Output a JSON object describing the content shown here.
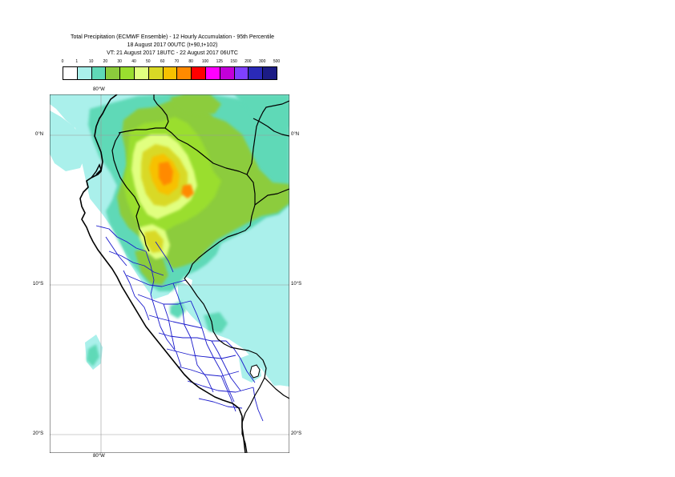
{
  "title": {
    "line1": "Total Precipitation (ECMWF Ensemble) - 12 Hourly Accumulation - 95th Percentile",
    "line2": "18 August 2017 00UTC (t+90,t+102)",
    "line3": "VT: 21 August 2017 18UTC - 22 August 2017 06UTC"
  },
  "legend": {
    "thresholds": [
      "0",
      "1",
      "10",
      "20",
      "30",
      "40",
      "50",
      "60",
      "70",
      "80",
      "100",
      "125",
      "150",
      "200",
      "300",
      "500"
    ],
    "colors": [
      "#ffffff",
      "#aaf0eb",
      "#5fd9b7",
      "#8ccc3c",
      "#9ade2f",
      "#e1ff80",
      "#d9d925",
      "#f7c100",
      "#ff8a00",
      "#ff0000",
      "#ff00ff",
      "#c300d9",
      "#7f40ff",
      "#2a2ab8",
      "#1c1c85"
    ]
  },
  "map": {
    "lat_labels": {
      "n0": "0°N",
      "s10": "10°S",
      "s20": "20°S"
    },
    "lon_labels": {
      "top": "80°W",
      "bottom": "80°W"
    }
  }
}
